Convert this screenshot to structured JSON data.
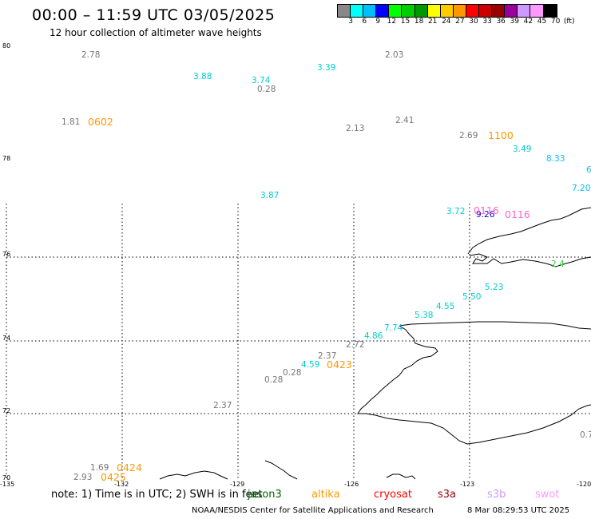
{
  "title": "00:00 – 11:59 UTC 03/05/2025",
  "subtitle": "12 hour collection of altimeter wave heights",
  "colorbar": {
    "colors": [
      "#888888",
      "#00ffff",
      "#00bfff",
      "#0000ff",
      "#00ff00",
      "#00cc00",
      "#009900",
      "#ffff00",
      "#ffcc00",
      "#ff9900",
      "#ff0000",
      "#cc0000",
      "#990000",
      "#990099",
      "#cc99ff",
      "#ff99ff",
      "#000000"
    ],
    "labels": [
      "3",
      "6",
      "9",
      "12",
      "15",
      "18",
      "21",
      "24",
      "27",
      "30",
      "33",
      "36",
      "39",
      "42",
      "45",
      "70",
      "(ft)"
    ]
  },
  "axes": {
    "lat_labels": [
      "80",
      "78",
      "76",
      "74",
      "72",
      "70"
    ],
    "lon_labels": [
      "-135",
      "-132",
      "-129",
      "-126",
      "-123",
      "-120"
    ]
  },
  "observations": [
    {
      "text": "2.78",
      "color": "#777777"
    },
    {
      "text": "3.88",
      "color": "#00cccc"
    },
    {
      "text": "3.74",
      "color": "#00cccc"
    },
    {
      "text": "0.28",
      "color": "#777777"
    },
    {
      "text": "3.39",
      "color": "#00cccc"
    },
    {
      "text": "2.03",
      "color": "#777777"
    },
    {
      "text": "1.81",
      "color": "#777777"
    },
    {
      "text": "2.13",
      "color": "#777777"
    },
    {
      "text": "2.41",
      "color": "#777777"
    },
    {
      "text": "2.69",
      "color": "#777777"
    },
    {
      "text": "3.49",
      "color": "#00cccc"
    },
    {
      "text": "8.33",
      "color": "#00bfff"
    },
    {
      "text": "6",
      "color": "#00cccc"
    },
    {
      "text": "7.20",
      "color": "#00bfff"
    },
    {
      "text": "3.87",
      "color": "#00cccc"
    },
    {
      "text": "3.72",
      "color": "#00cccc"
    },
    {
      "text": "9.26",
      "color": "#0000cc"
    },
    {
      "text": "5.23",
      "color": "#00cccc"
    },
    {
      "text": "2.4",
      "color": "#33cc33"
    },
    {
      "text": "5.50",
      "color": "#00cccc"
    },
    {
      "text": "4.55",
      "color": "#00cccc"
    },
    {
      "text": "5.38",
      "color": "#00cccc"
    },
    {
      "text": "7.74",
      "color": "#00bfff"
    },
    {
      "text": "4.86",
      "color": "#00cccc"
    },
    {
      "text": "2.72",
      "color": "#777777"
    },
    {
      "text": "2.37",
      "color": "#777777"
    },
    {
      "text": "4.59",
      "color": "#00cccc"
    },
    {
      "text": "0.28",
      "color": "#777777"
    },
    {
      "text": "0.28",
      "color": "#777777"
    },
    {
      "text": "2.37",
      "color": "#777777"
    },
    {
      "text": "1.69",
      "color": "#777777"
    },
    {
      "text": "2.93",
      "color": "#777777"
    },
    {
      "text": "0.7",
      "color": "#777777"
    }
  ],
  "pass_labels": [
    {
      "text": "0602",
      "color": "#ff9900"
    },
    {
      "text": "1100",
      "color": "#ff9900"
    },
    {
      "text": "0116",
      "color": "#ff66cc"
    },
    {
      "text": "0116",
      "color": "#ff66cc"
    },
    {
      "text": "0423",
      "color": "#ff9900"
    },
    {
      "text": "0424",
      "color": "#ff9900"
    },
    {
      "text": "0425",
      "color": "#ff9900"
    }
  ],
  "footer": {
    "note": "note: 1) Time is in UTC; 2) SWH is in feet",
    "satellites": [
      {
        "name": "jason3",
        "color": "#006600"
      },
      {
        "name": "altika",
        "color": "#ff9900"
      },
      {
        "name": "cryosat",
        "color": "#ff0000"
      },
      {
        "name": "s3a",
        "color": "#990000"
      },
      {
        "name": "s3b",
        "color": "#cc99ff"
      },
      {
        "name": "swot",
        "color": "#ff99ff"
      }
    ],
    "credit": "NOAA/NESDIS Center for Satellite Applications and Research",
    "timestamp": "8 Mar 08:29:53 UTC 2025"
  }
}
